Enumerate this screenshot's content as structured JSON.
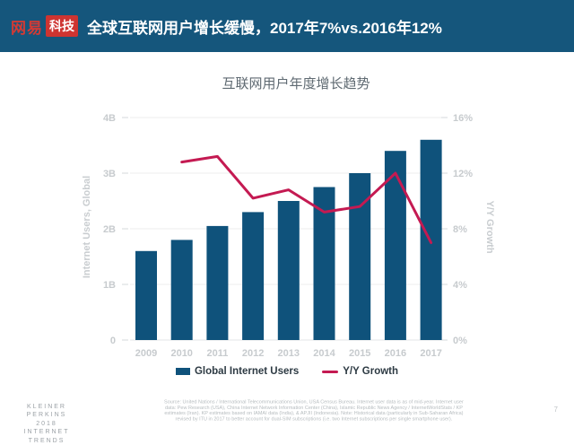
{
  "header": {
    "logo_netease": "网易",
    "logo_tech": "科技",
    "title": "全球互联网用户增长缓慢，2017年7%vs.2016年12%"
  },
  "chart_data": {
    "type": "bar",
    "title": "互联网用户年度增长趋势",
    "categories": [
      "2009",
      "2010",
      "2011",
      "2012",
      "2013",
      "2014",
      "2015",
      "2016",
      "2017"
    ],
    "series": [
      {
        "name": "Global Internet Users",
        "type": "bar",
        "unit": "B",
        "values": [
          1.6,
          1.8,
          2.05,
          2.3,
          2.5,
          2.75,
          3.0,
          3.4,
          3.6
        ],
        "color": "#0f527b"
      },
      {
        "name": "Y/Y Growth",
        "type": "line",
        "unit": "%",
        "values": [
          null,
          12.8,
          13.2,
          10.2,
          10.8,
          9.2,
          9.6,
          12,
          7
        ],
        "color": "#c41a52"
      }
    ],
    "left_axis": {
      "label": "Internet Users, Global",
      "ticks": [
        "0",
        "1B",
        "2B",
        "3B",
        "4B"
      ],
      "max": 4
    },
    "right_axis": {
      "label": "Y/Y Growth",
      "ticks": [
        "0%",
        "4%",
        "8%",
        "12%",
        "16%"
      ],
      "max": 16
    },
    "grid": true,
    "legend_position": "bottom"
  },
  "legend": {
    "bar_label": "Global Internet Users",
    "line_label": "Y/Y Growth"
  },
  "footer": {
    "brand": [
      "KLEINER PERKINS",
      "2018",
      "INTERNET TRENDS"
    ],
    "source_lines": [
      "Source: United Nations / International Telecommunications Union, USA Census Bureau. Internet user data is as of mid-year. Internet user",
      "data: Pew Research (USA), China Internet Network Information Center (China), Islamic Republic News Agency / InternetWorldStats / KP",
      "estimates (Iran). KP estimates based on IAMAI data (India), & APJII (Indonesia).  Note: Historical data (particularly in Sub-Saharan Africa)",
      "revised by ITU in 2017 to better account for dual-SIM subscriptions (i.e. two Internet subscriptions per single smartphone user)."
    ],
    "page": "7"
  }
}
